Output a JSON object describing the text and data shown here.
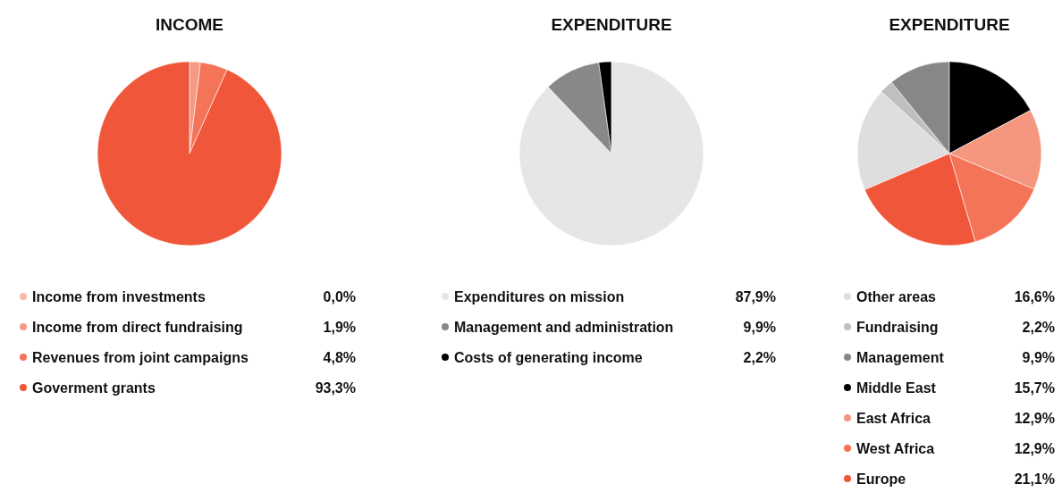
{
  "chart_data": [
    {
      "type": "pie",
      "title": "INCOME",
      "categories": [
        "Income from investments",
        "Income from direct fundraising",
        "Revenues from joint campaigns",
        "Goverment grants"
      ],
      "values": [
        0.0,
        1.9,
        4.8,
        93.3
      ],
      "colors": [
        "#f7b8a8",
        "#f59a85",
        "#f47458",
        "#f0573a"
      ],
      "value_labels": [
        "0,0%",
        "1,9%",
        "4,8%",
        "93,3%"
      ],
      "legend": "bottom"
    },
    {
      "type": "pie",
      "title": "EXPENDITURE",
      "categories": [
        "Expenditures on mission",
        "Management and administration",
        "Costs of generating income"
      ],
      "values": [
        87.9,
        9.9,
        2.2
      ],
      "colors": [
        "#e6e6e6",
        "#888888",
        "#000000"
      ],
      "value_labels": [
        "87,9%",
        "9,9%",
        "2,2%"
      ],
      "legend": "bottom"
    },
    {
      "type": "pie",
      "title": "EXPENDITURE",
      "categories": [
        "Other areas",
        "Fundraising",
        "Management",
        "Middle East",
        "East Africa",
        "West Africa",
        "Europe"
      ],
      "values": [
        16.6,
        2.2,
        9.9,
        15.7,
        12.9,
        12.9,
        21.1
      ],
      "colors": [
        "#dedede",
        "#bfbfbf",
        "#878787",
        "#000000",
        "#f5967e",
        "#f47458",
        "#f0573a"
      ],
      "value_labels": [
        "16,6%",
        "2,2%",
        "9,9%",
        "15,7%",
        "12,9%",
        "12,9%",
        "21,1%"
      ],
      "legend": "bottom"
    }
  ]
}
